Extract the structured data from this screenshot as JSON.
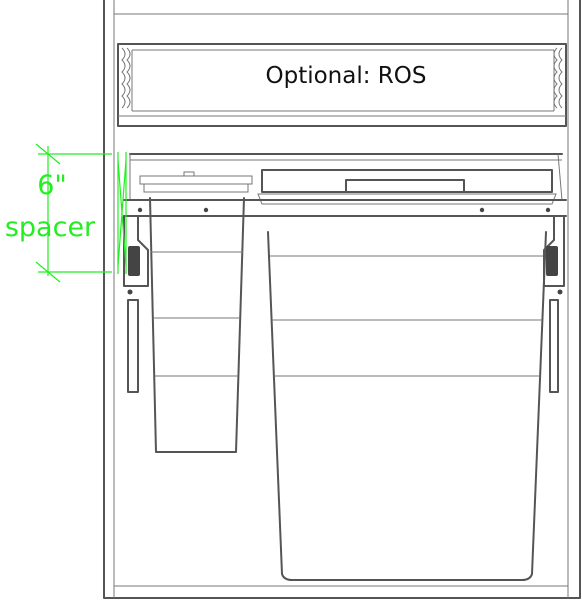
{
  "labels": {
    "optional_shelf": "Optional: ROS",
    "spacer_size": "6\"",
    "spacer_word": "spacer"
  },
  "colors": {
    "line": "#555555",
    "accent": "#22ee22",
    "text": "#111111",
    "background": "#ffffff"
  }
}
